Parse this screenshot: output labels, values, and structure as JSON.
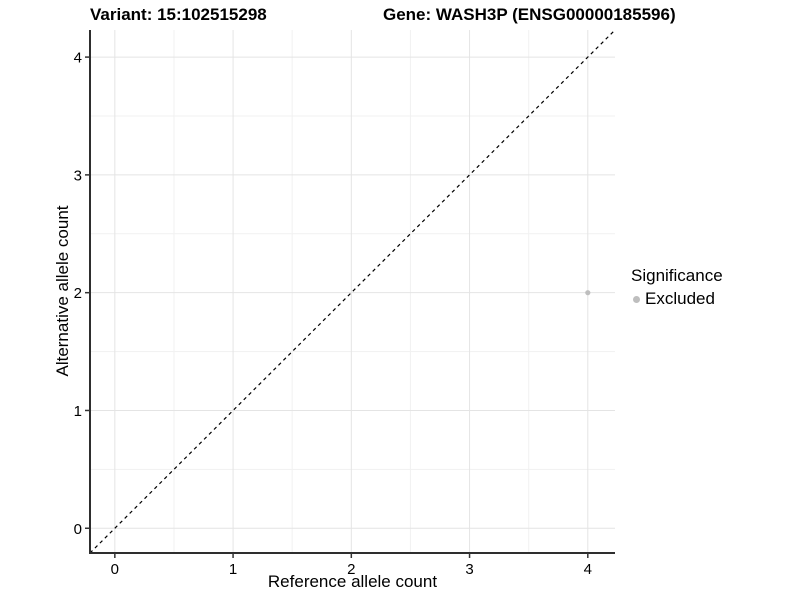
{
  "chart_data": {
    "type": "scatter",
    "titles": {
      "left": "Variant: 15:102515298",
      "right": "Gene: WASH3P (ENSG00000185596)"
    },
    "xlabel": "Reference allele count",
    "ylabel": "Alternative allele count",
    "xlim": [
      -0.21,
      4.23
    ],
    "ylim": [
      -0.21,
      4.23
    ],
    "xticks": [
      0,
      1,
      2,
      3,
      4
    ],
    "yticks": [
      0,
      1,
      2,
      3,
      4
    ],
    "minor_ticks": [
      0.5,
      1.5,
      2.5,
      3.5
    ],
    "grid": "major and minor gridlines on, white panel background",
    "reference_line": {
      "kind": "identity y = x",
      "style": "dashed",
      "color": "#000000"
    },
    "series": [
      {
        "name": "Excluded",
        "marker": "circle",
        "color": "#bebebe",
        "points": [
          {
            "x": 4,
            "y": 2
          }
        ]
      }
    ],
    "legend": {
      "title": "Significance",
      "position": "right",
      "items": [
        {
          "label": "Excluded",
          "color": "#bebebe"
        }
      ]
    },
    "colors": {
      "background": "#ffffff",
      "grid_major": "#e4e4e4",
      "grid_minor": "#f1f1f1",
      "axis_line": "#2e2e2e",
      "tick": "#333333",
      "text": "#000000",
      "point": "#bebebe"
    }
  }
}
